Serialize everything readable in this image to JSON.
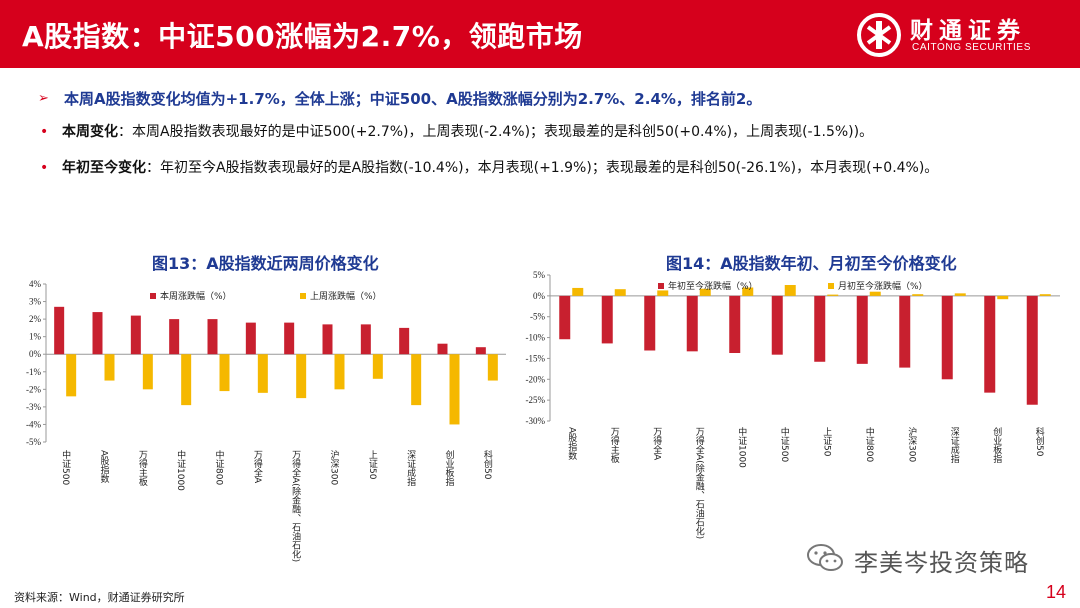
{
  "header": {
    "title": "A股指数：中证500涨幅为2.7%，领跑市场",
    "logo_cn": "财通证券",
    "logo_en": "CAITONG SECURITIES"
  },
  "bullets": {
    "main": "本周A股指数变化均值为+1.7%，全体上涨；中证500、A股指数涨幅分别为2.7%、2.4%，排名前2。",
    "weekly_label": "本周变化",
    "weekly_text": "：本周A股指数表现最好的是中证500(+2.7%)，上周表现(-2.4%)；表现最差的是科创50(+0.4%)，上周表现(-1.5%))。",
    "ytd_label": "年初至今变化",
    "ytd_text": "：年初至今A股指数表现最好的是A股指数(-10.4%)，本月表现(+1.9%)；表现最差的是科创50(-26.1%)，本月表现(+0.4%)。"
  },
  "chart_data": [
    {
      "type": "bar",
      "title": "图13：A股指数近两周价格变化",
      "categories": [
        "中证500",
        "A股指数",
        "万得主板",
        "中证1000",
        "中证800",
        "万得全A",
        "万得全A(除金融、石油石化)",
        "沪深300",
        "上证50",
        "深证成指",
        "创业板指",
        "科创50"
      ],
      "series": [
        {
          "name": "本周涨跌幅（%）",
          "color": "#c8202f",
          "values": [
            2.7,
            2.4,
            2.2,
            2.0,
            2.0,
            1.8,
            1.8,
            1.7,
            1.7,
            1.5,
            0.6,
            0.4
          ]
        },
        {
          "name": "上周涨跌幅（%）",
          "color": "#f5b800",
          "values": [
            -2.4,
            -1.5,
            -2.0,
            -2.9,
            -2.1,
            -2.2,
            -2.5,
            -2.0,
            -1.4,
            -2.9,
            -4.0,
            -1.5
          ]
        }
      ],
      "yticks": [
        "4%",
        "3%",
        "2%",
        "1%",
        "0%",
        "-1%",
        "-2%",
        "-3%",
        "-4%",
        "-5%"
      ],
      "ylim": [
        -5,
        4
      ],
      "grid": false,
      "legend": "top"
    },
    {
      "type": "bar",
      "title": "图14：A股指数年初、月初至今价格变化",
      "categories": [
        "A股指数",
        "万得主板",
        "万得全A",
        "万得全A(除金融、石油石化)",
        "中证1000",
        "中证500",
        "上证50",
        "中证800",
        "沪深300",
        "深证成指",
        "创业板指",
        "科创50"
      ],
      "series": [
        {
          "name": "年初至今涨跌幅（%）",
          "color": "#c8202f",
          "values": [
            -10.4,
            -11.4,
            -13.1,
            -13.3,
            -13.7,
            -14.1,
            -15.8,
            -16.3,
            -17.2,
            -20.0,
            -23.2,
            -26.1
          ]
        },
        {
          "name": "月初至今涨跌幅（%）",
          "color": "#f5b800",
          "values": [
            1.9,
            1.6,
            1.3,
            1.7,
            2.0,
            2.6,
            0.3,
            1.0,
            0.4,
            0.6,
            -0.8,
            0.4
          ]
        }
      ],
      "yticks": [
        "5%",
        "0%",
        "-5%",
        "-10%",
        "-15%",
        "-20%",
        "-25%",
        "-30%"
      ],
      "ylim": [
        -30,
        5
      ],
      "grid": false,
      "legend": "top"
    }
  ],
  "footer": {
    "source": "资料来源：Wind，财通证券研究所",
    "watermark": "李美岑投资策略",
    "page": "14"
  },
  "colors": {
    "brand_red": "#d6001c",
    "title_blue": "#1f3a93",
    "bar_red": "#c8202f",
    "bar_yellow": "#f5b800"
  },
  "icons": {
    "logo": "caitong-logo-icon",
    "bullet_arrow": "arrow-right-icon",
    "watermark": "wechat-icon"
  }
}
